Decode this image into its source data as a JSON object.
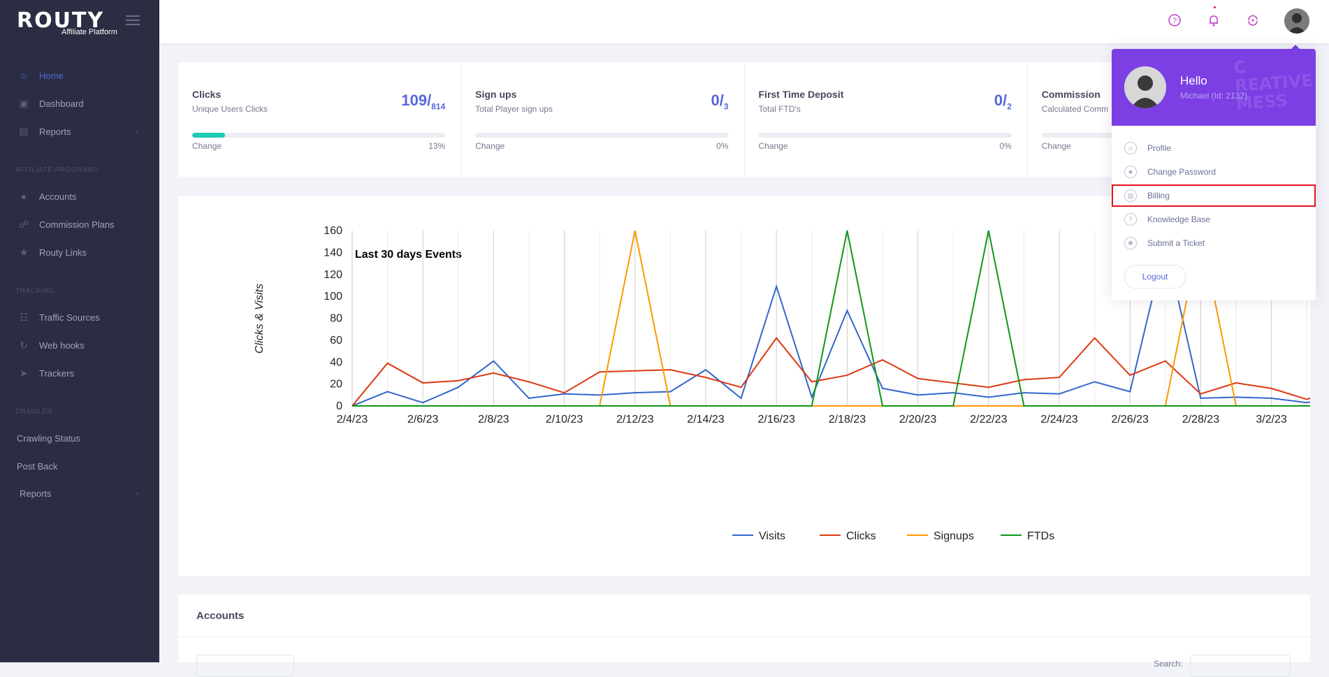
{
  "brand": {
    "name": "ROUTY",
    "subtitle": "Affiliate Platform"
  },
  "sidebar": {
    "items": [
      {
        "label": "Home",
        "icon": "home-icon",
        "active": true
      },
      {
        "label": "Dashboard",
        "icon": "dashboard-icon"
      },
      {
        "label": "Reports",
        "icon": "bar-chart-icon"
      },
      {
        "label": "Accounts",
        "icon": "user-circle-icon"
      },
      {
        "label": "Commission Plans",
        "icon": "handshake-icon"
      },
      {
        "label": "Routy Links",
        "icon": "star-icon"
      },
      {
        "label": "Traffic Sources",
        "icon": "traffic-icon"
      },
      {
        "label": "Web hooks",
        "icon": "refresh-icon"
      },
      {
        "label": "Trackers",
        "icon": "rocket-icon"
      },
      {
        "label": "Crawling Status"
      },
      {
        "label": "Post Back"
      },
      {
        "label": "Reports"
      }
    ],
    "sections": [
      "AFFILIATE PROGRAMS",
      "TRACKING",
      "CRAWLER"
    ]
  },
  "topbar": {
    "icons": [
      "help-icon",
      "bell-icon",
      "sync-icon",
      "avatar"
    ]
  },
  "stats": [
    {
      "title": "Clicks",
      "sub": "Unique Users Clicks",
      "num": "109/",
      "den": "814",
      "progress": 0.13,
      "change_label": "Change",
      "pct": "13%"
    },
    {
      "title": "Sign ups",
      "sub": "Total Player sign ups",
      "num": "0/",
      "den": "3",
      "progress": 0,
      "change_label": "Change",
      "pct": "0%"
    },
    {
      "title": "First Time Deposit",
      "sub": "Total FTD's",
      "num": "0/",
      "den": "2",
      "progress": 0,
      "change_label": "Change",
      "pct": "0%"
    },
    {
      "title": "Commission",
      "sub": "Calculated Comm",
      "num": "",
      "den": "",
      "progress": 0,
      "change_label": "Change",
      "pct": ""
    }
  ],
  "chart_data": {
    "type": "line",
    "title": "Last 30 days Events",
    "ylabel": "Clicks & Visits",
    "xlabel": "",
    "ylim": [
      0,
      160
    ],
    "yticks": [
      0,
      20,
      40,
      60,
      80,
      100,
      120,
      140,
      160
    ],
    "x": [
      "2/4/23",
      "2/5/23",
      "2/6/23",
      "2/7/23",
      "2/8/23",
      "2/9/23",
      "2/10/23",
      "2/11/23",
      "2/12/23",
      "2/13/23",
      "2/14/23",
      "2/15/23",
      "2/16/23",
      "2/17/23",
      "2/18/23",
      "2/19/23",
      "2/20/23",
      "2/21/23",
      "2/22/23",
      "2/23/23",
      "2/24/23",
      "2/25/23",
      "2/26/23",
      "2/27/23",
      "2/28/23",
      "3/1/23",
      "3/2/23",
      "3/3/23",
      "3/4/23"
    ],
    "xtick_labels": [
      "2/4/23",
      "2/6/23",
      "2/8/23",
      "2/10/23",
      "2/12/23",
      "2/14/23",
      "2/16/23",
      "2/18/23",
      "2/20/23",
      "2/22/23",
      "2/24/23",
      "2/26/23",
      "2/28/23",
      "3/2/23",
      "3"
    ],
    "series": [
      {
        "name": "Visits",
        "color": "#3366cc",
        "values": [
          0,
          13,
          3,
          17,
          41,
          7,
          11,
          10,
          12,
          13,
          33,
          7,
          109,
          8,
          87,
          16,
          10,
          12,
          8,
          12,
          11,
          22,
          13,
          148,
          7,
          8,
          7,
          3,
          8
        ]
      },
      {
        "name": "Clicks",
        "color": "#dc3912",
        "values": [
          0,
          39,
          21,
          23,
          30,
          22,
          12,
          31,
          32,
          33,
          26,
          17,
          62,
          22,
          28,
          42,
          25,
          21,
          17,
          24,
          26,
          62,
          28,
          41,
          11,
          21,
          16,
          6,
          17
        ]
      },
      {
        "name": "Signups",
        "color": "#ff9900",
        "values": [
          0,
          0,
          0,
          0,
          0,
          0,
          0,
          0,
          160,
          0,
          0,
          0,
          0,
          0,
          0,
          0,
          0,
          0,
          0,
          0,
          0,
          0,
          0,
          0,
          160,
          0,
          0,
          0,
          0
        ]
      },
      {
        "name": "FTDs",
        "color": "#109618",
        "values": [
          0,
          0,
          0,
          0,
          0,
          0,
          0,
          0,
          0,
          0,
          0,
          0,
          0,
          0,
          160,
          0,
          0,
          0,
          160,
          0,
          0,
          0,
          0,
          0,
          0,
          0,
          0,
          0,
          0
        ]
      }
    ],
    "legend": "bottom",
    "grid": true
  },
  "accounts": {
    "title": "Accounts",
    "search_label": "Search:"
  },
  "dropdown": {
    "hello": "Hello",
    "user": "Michael (Id: 2132)",
    "bg_text": "C\nCREATIVE\nMESS",
    "items": [
      {
        "label": "Profile",
        "icon": "profile-icon"
      },
      {
        "label": "Change Password",
        "icon": "lock-icon"
      },
      {
        "label": "Billing",
        "icon": "billing-icon",
        "highlighted": true
      },
      {
        "label": "Knowledge Base",
        "icon": "help-circle-icon"
      },
      {
        "label": "Submit a Ticket",
        "icon": "bug-icon"
      }
    ],
    "logout": "Logout"
  },
  "colors": {
    "accent": "#5867dd",
    "sidebar_bg": "#2b2d42",
    "dropdown_head": "#7b3fe4",
    "highlight": "#e3151c",
    "progress": "#1dc9b7"
  }
}
